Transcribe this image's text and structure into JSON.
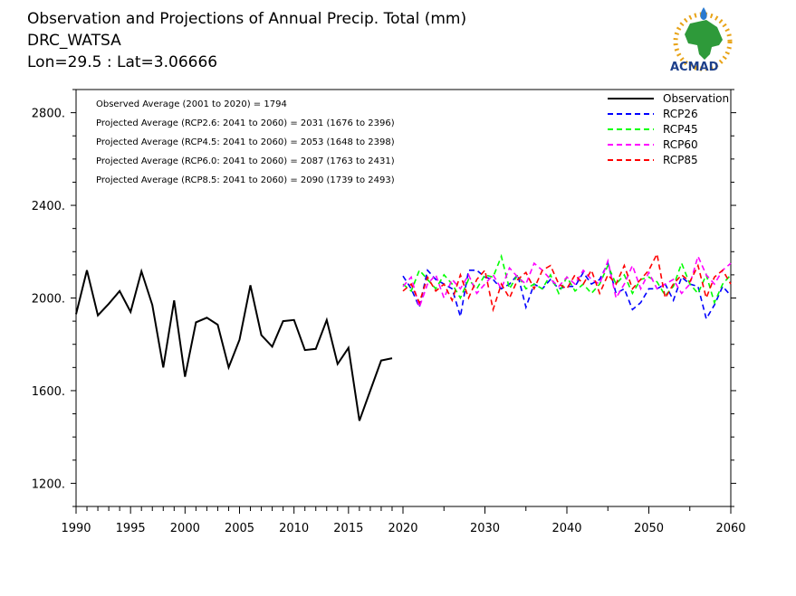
{
  "header": {
    "title": "Observation and Projections of Annual Precip. Total (mm)",
    "station": "DRC_WATSA",
    "coords": "Lon=29.5 : Lat=3.06666"
  },
  "logo": {
    "text": "ACMAD"
  },
  "annotations": [
    "Observed Average (2001 to 2020) = 1794",
    "Projected Average (RCP2.6: 2041 to 2060) = 2031 (1676 to 2396)",
    "Projected Average (RCP4.5: 2041 to 2060) = 2053 (1648 to 2398)",
    "Projected Average (RCP6.0: 2041 to 2060) = 2087 (1763 to 2431)",
    "Projected Average (RCP8.5: 2041 to 2060) = 2090 (1739 to 2493)"
  ],
  "chart_data": {
    "type": "line",
    "title": "Observation and Projections of Annual Precip. Total (mm)",
    "xlabel": "",
    "ylabel": "",
    "xlim": [
      1990,
      2060
    ],
    "ylim": [
      1100,
      2900
    ],
    "x_ticks": [
      {
        "value": 1990,
        "label": "1990"
      },
      {
        "value": 1995,
        "label": "1995"
      },
      {
        "value": 2000,
        "label": "2000"
      },
      {
        "value": 2005,
        "label": "2005"
      },
      {
        "value": 2010,
        "label": "2010"
      },
      {
        "value": 2015,
        "label": "2015"
      },
      {
        "value": 2020,
        "label": "2020"
      },
      {
        "value": 2030,
        "label": "2030"
      },
      {
        "value": 2040,
        "label": "2040"
      },
      {
        "value": 2050,
        "label": "2050"
      },
      {
        "value": 2060,
        "label": "2060"
      }
    ],
    "y_ticks": [
      {
        "value": 1200,
        "label": "1200."
      },
      {
        "value": 1600,
        "label": "1600."
      },
      {
        "value": 2000,
        "label": "2000."
      },
      {
        "value": 2400,
        "label": "2400."
      },
      {
        "value": 2800,
        "label": "2800."
      }
    ],
    "legend_position": "top-right",
    "grid": false,
    "series": [
      {
        "name": "Observation",
        "color": "#000000",
        "dash": "solid",
        "x": [
          1990,
          1991,
          1992,
          1993,
          1994,
          1995,
          1996,
          1997,
          1998,
          1999,
          2000,
          2001,
          2002,
          2003,
          2004,
          2005,
          2006,
          2007,
          2008,
          2009,
          2010,
          2011,
          2012,
          2013,
          2014,
          2015,
          2016,
          2017,
          2018,
          2019,
          2020
        ],
        "values": [
          1930,
          2120,
          1925,
          1975,
          2030,
          1940,
          2115,
          1970,
          1700,
          1990,
          1660,
          1895,
          1915,
          1885,
          1700,
          1820,
          2055,
          1840,
          1790,
          1900,
          1905,
          1775,
          1780,
          1905,
          1715,
          1785,
          1470,
          1600,
          1730,
          1740,
          null
        ]
      },
      {
        "name": "RCP26",
        "color": "#0000ff",
        "dash": "dashed",
        "x": [
          2020,
          2021,
          2022,
          2023,
          2024,
          2025,
          2026,
          2027,
          2028,
          2029,
          2030,
          2031,
          2032,
          2033,
          2034,
          2035,
          2036,
          2037,
          2038,
          2039,
          2040,
          2041,
          2042,
          2043,
          2044,
          2045,
          2046,
          2047,
          2048,
          2049,
          2050,
          2051,
          2052,
          2053,
          2054,
          2055,
          2056,
          2057,
          2058,
          2059,
          2060
        ],
        "values": [
          2095,
          2040,
          1960,
          2120,
          2080,
          2060,
          2040,
          1920,
          2120,
          2120,
          2090,
          2080,
          2040,
          2060,
          2100,
          1960,
          2060,
          2040,
          2080,
          2040,
          2050,
          2050,
          2110,
          2060,
          2080,
          2150,
          2020,
          2040,
          1950,
          1980,
          2040,
          2040,
          2060,
          1990,
          2090,
          2060,
          2050,
          1910,
          1970,
          2050,
          2010
        ]
      },
      {
        "name": "RCP45",
        "color": "#00ff00",
        "dash": "dashed",
        "x": [
          2020,
          2021,
          2022,
          2023,
          2024,
          2025,
          2026,
          2027,
          2028,
          2029,
          2030,
          2031,
          2032,
          2033,
          2034,
          2035,
          2036,
          2037,
          2038,
          2039,
          2040,
          2041,
          2042,
          2043,
          2044,
          2045,
          2046,
          2047,
          2048,
          2049,
          2050,
          2051,
          2052,
          2053,
          2054,
          2055,
          2056,
          2057,
          2058,
          2059,
          2060
        ],
        "values": [
          2060,
          2030,
          2120,
          2080,
          2040,
          2100,
          2060,
          2000,
          2080,
          2040,
          2100,
          2090,
          2180,
          2040,
          2100,
          2040,
          2060,
          2040,
          2100,
          2020,
          2090,
          2030,
          2060,
          2020,
          2060,
          2140,
          2060,
          2100,
          2020,
          2080,
          2090,
          2070,
          2010,
          2050,
          2150,
          2060,
          2020,
          2100,
          1980,
          2060,
          2100
        ]
      },
      {
        "name": "RCP60",
        "color": "#ff00ff",
        "dash": "dashed",
        "x": [
          2020,
          2021,
          2022,
          2023,
          2024,
          2025,
          2026,
          2027,
          2028,
          2029,
          2030,
          2031,
          2032,
          2033,
          2034,
          2035,
          2036,
          2037,
          2038,
          2039,
          2040,
          2041,
          2042,
          2043,
          2044,
          2045,
          2046,
          2047,
          2048,
          2049,
          2050,
          2051,
          2052,
          2053,
          2054,
          2055,
          2056,
          2057,
          2058,
          2059,
          2060
        ],
        "values": [
          2050,
          2090,
          1960,
          2060,
          2100,
          2000,
          2080,
          2040,
          2100,
          2020,
          2060,
          2100,
          2040,
          2130,
          2090,
          2060,
          2150,
          2120,
          2080,
          2050,
          2090,
          2060,
          2120,
          2080,
          2060,
          2160,
          2000,
          2060,
          2140,
          2040,
          2110,
          2040,
          2060,
          2080,
          2020,
          2060,
          2180,
          2100,
          2060,
          2120,
          2150
        ]
      },
      {
        "name": "RCP85",
        "color": "#ff0000",
        "dash": "dashed",
        "x": [
          2020,
          2021,
          2022,
          2023,
          2024,
          2025,
          2026,
          2027,
          2028,
          2029,
          2030,
          2031,
          2032,
          2033,
          2034,
          2035,
          2036,
          2037,
          2038,
          2039,
          2040,
          2041,
          2042,
          2043,
          2044,
          2045,
          2046,
          2047,
          2048,
          2049,
          2050,
          2051,
          2052,
          2053,
          2054,
          2055,
          2056,
          2057,
          2058,
          2059,
          2060
        ],
        "values": [
          2030,
          2060,
          1980,
          2090,
          2030,
          2060,
          1990,
          2100,
          2000,
          2080,
          2120,
          1950,
          2060,
          2000,
          2080,
          2110,
          2040,
          2120,
          2140,
          2060,
          2040,
          2100,
          2060,
          2120,
          2020,
          2100,
          2060,
          2140,
          2040,
          2080,
          2120,
          2190,
          2000,
          2060,
          2100,
          2070,
          2140,
          2000,
          2090,
          2120,
          2060
        ]
      }
    ]
  }
}
